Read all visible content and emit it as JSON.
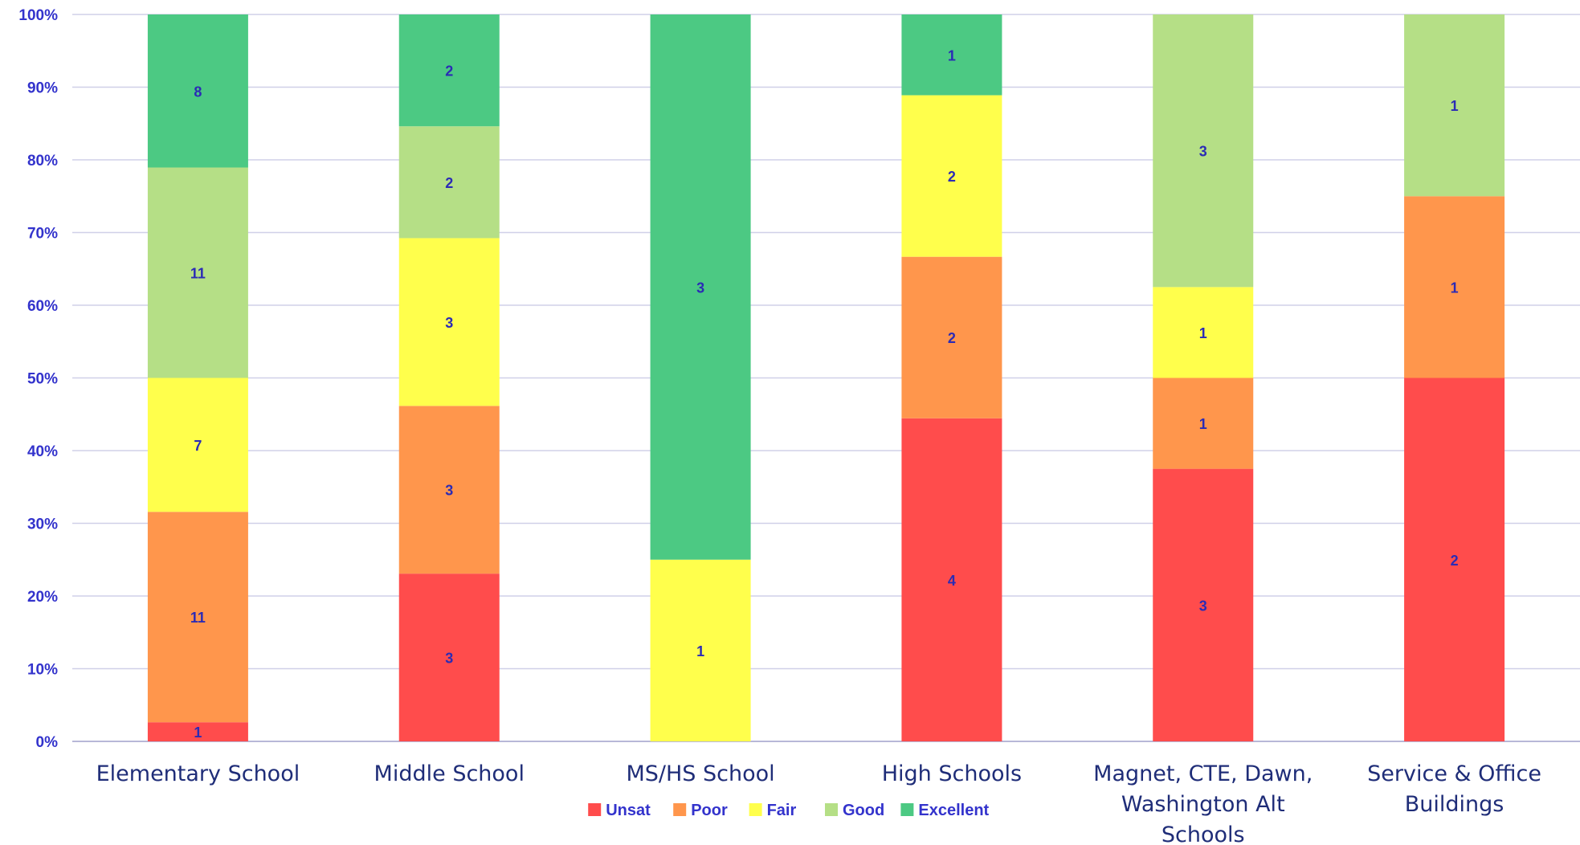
{
  "chart_data": {
    "type": "bar",
    "stacked": true,
    "normalized_percent": true,
    "title": "",
    "xlabel": "",
    "ylabel": "",
    "ylim": [
      0,
      100
    ],
    "yticks": [
      "0%",
      "10%",
      "20%",
      "30%",
      "40%",
      "50%",
      "60%",
      "70%",
      "80%",
      "90%",
      "100%"
    ],
    "grid": true,
    "legend_position": "bottom",
    "categories": [
      [
        "Elementary School"
      ],
      [
        "Middle School"
      ],
      [
        "MS/HS School"
      ],
      [
        "High Schools"
      ],
      [
        "Magnet, CTE, Dawn,",
        "Washington Alt",
        "Schools"
      ],
      [
        "Service & Office",
        "Buildings"
      ]
    ],
    "series": [
      {
        "name": "Unsat",
        "color": "#ff4c4c",
        "values": [
          1,
          3,
          0,
          4,
          3,
          2
        ]
      },
      {
        "name": "Poor",
        "color": "#ff964c",
        "values": [
          11,
          3,
          0,
          2,
          1,
          1
        ]
      },
      {
        "name": "Fair",
        "color": "#ffff4c",
        "values": [
          7,
          3,
          1,
          2,
          1,
          0
        ]
      },
      {
        "name": "Good",
        "color": "#b5df86",
        "values": [
          11,
          2,
          0,
          0,
          3,
          1
        ]
      },
      {
        "name": "Excellent",
        "color": "#4cc983",
        "values": [
          8,
          2,
          3,
          1,
          0,
          0
        ]
      }
    ],
    "colors": {
      "axis_text": "#3333cc",
      "data_label": "#2b2bb5",
      "category_text": "#1f2d78",
      "grid": "#d0d0e8"
    }
  }
}
